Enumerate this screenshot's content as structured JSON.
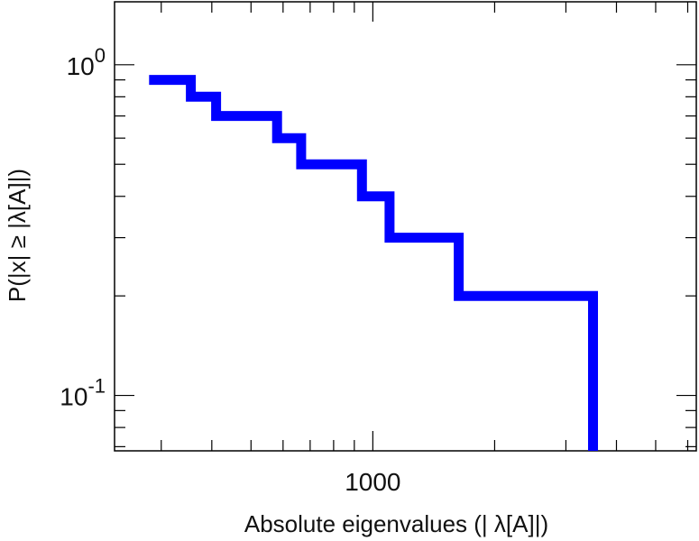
{
  "chart_data": {
    "type": "line",
    "subtype": "ccdf-step",
    "xlabel": "Absolute eigenvalues (|     λ[A]|)",
    "ylabel": "P(|x|  ≥ |λ[A]|)",
    "x_scale": "log",
    "y_scale": "log",
    "xlim": [
      230,
      6300
    ],
    "ylim": [
      0.068,
      1.55
    ],
    "x_ticks": [
      {
        "value": 1000,
        "label": "1000"
      }
    ],
    "y_ticks": [
      {
        "value": 1.0,
        "base": "10",
        "exp": "0"
      },
      {
        "value": 0.1,
        "base": "10",
        "exp": "-1"
      }
    ],
    "grid": false,
    "series": [
      {
        "color": "#0000ff",
        "x": [
          280,
          355,
          410,
          580,
          665,
          940,
          1100,
          1630,
          3500
        ],
        "y": [
          0.9,
          0.8,
          0.7,
          0.6,
          0.5,
          0.4,
          0.3,
          0.2,
          0.1
        ]
      }
    ]
  }
}
